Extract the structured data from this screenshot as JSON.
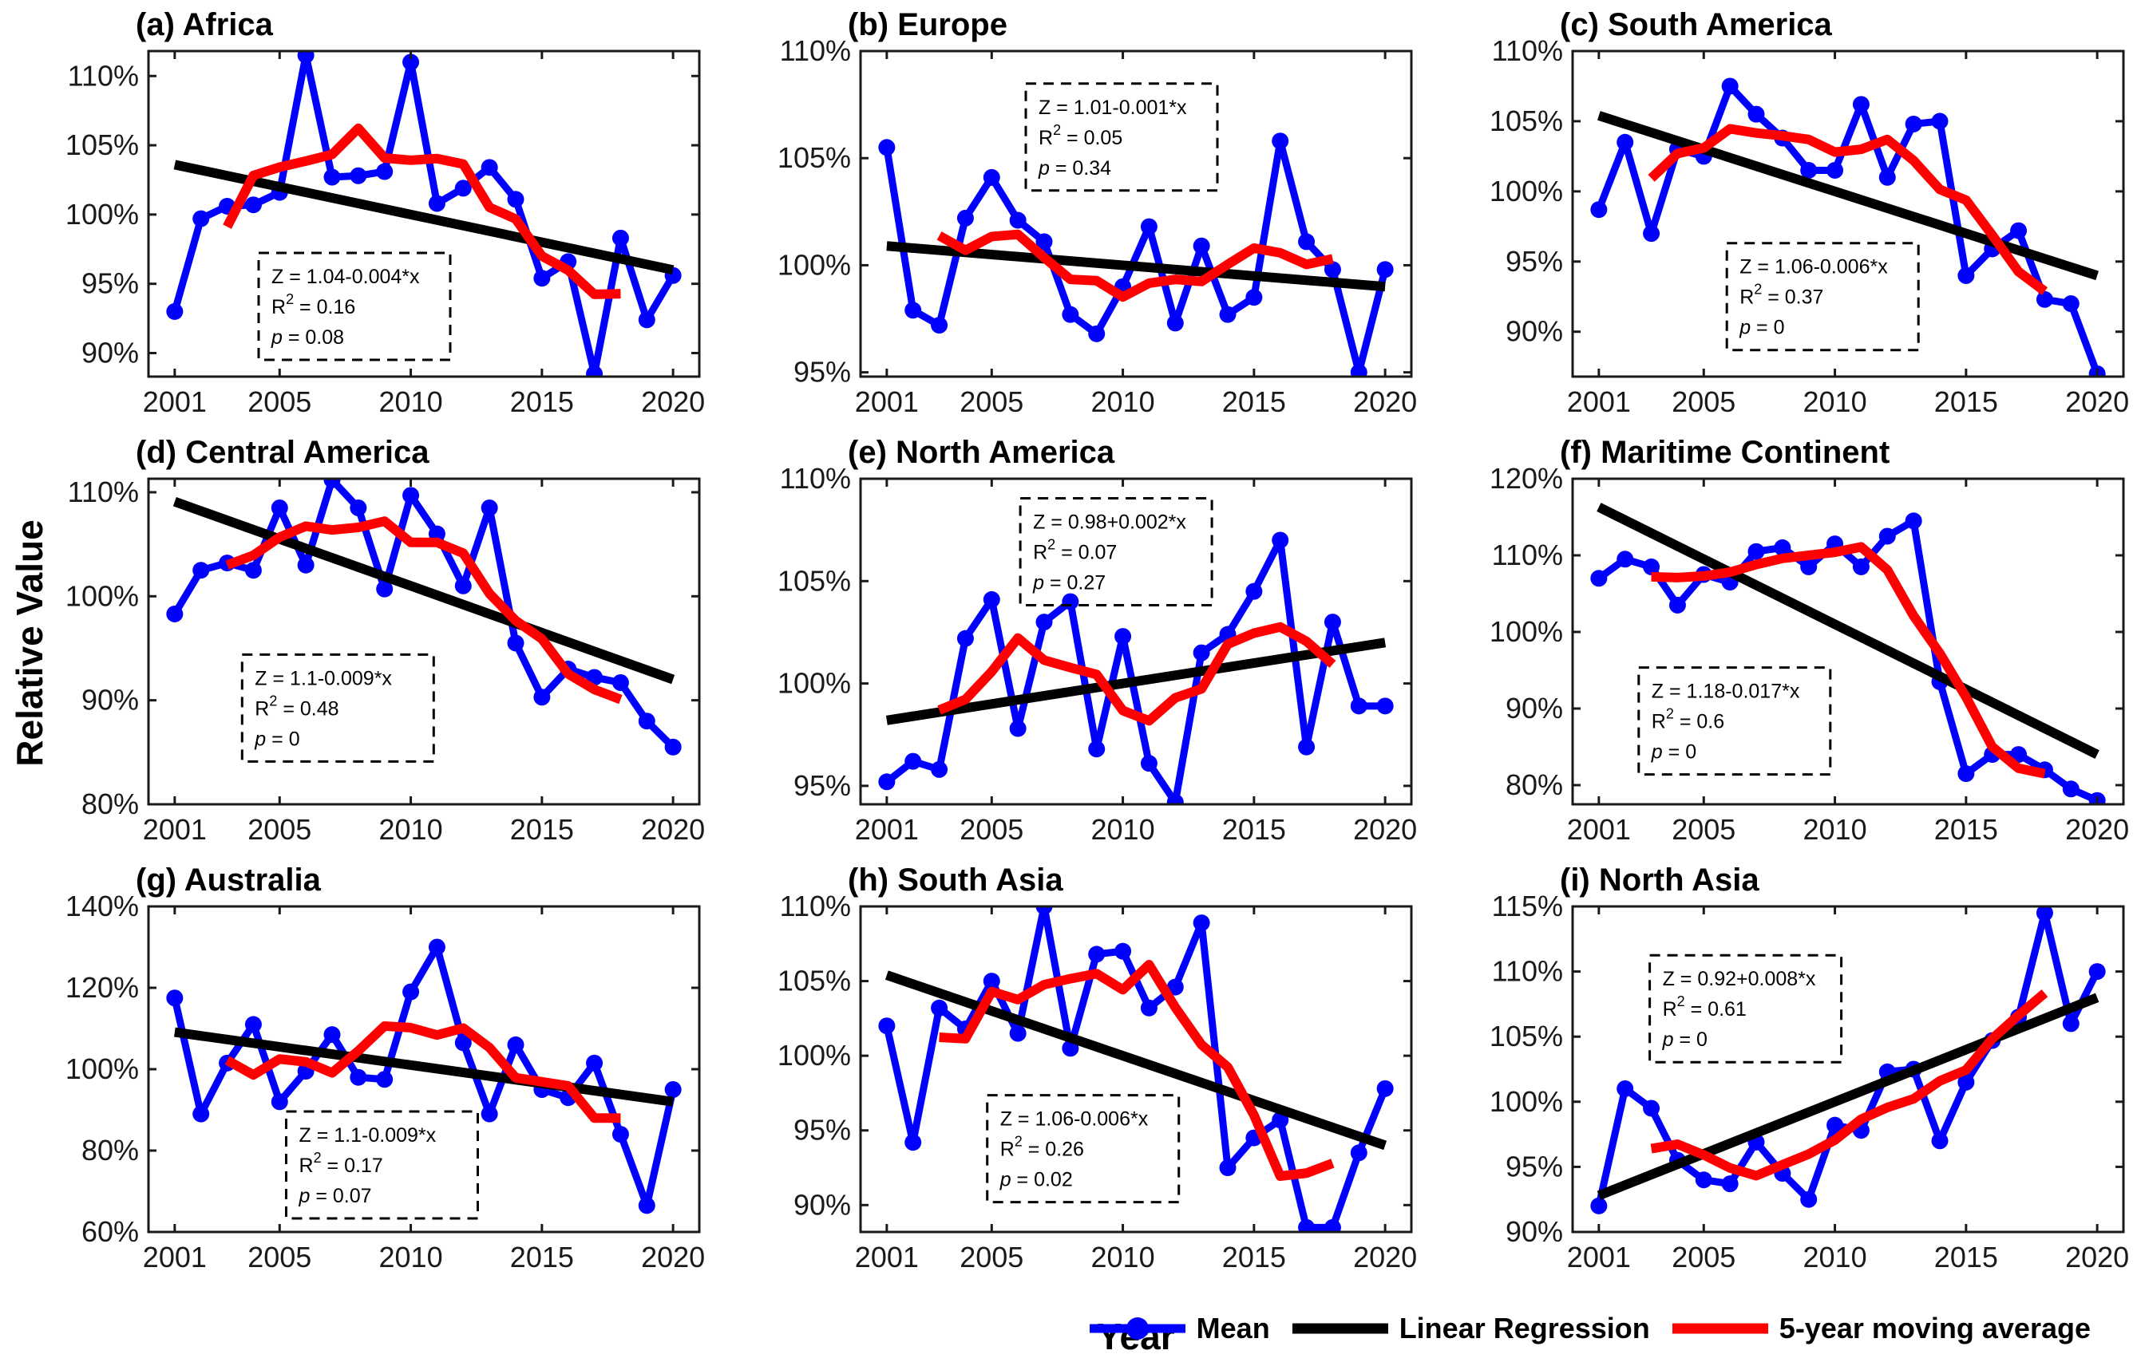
{
  "figure": {
    "ylabel": "Relative Value",
    "xlabel": "Year"
  },
  "legend": {
    "items": [
      {
        "id": "mean",
        "label": "Mean"
      },
      {
        "id": "regression",
        "label": "Linear Regression"
      },
      {
        "id": "moving_average",
        "label": "5-year moving average"
      }
    ]
  },
  "colors": {
    "mean": "#0000FF",
    "regression": "#000000",
    "moving_average": "#FF0000",
    "axis": "#1a1a1a",
    "text": "#000000"
  },
  "axis": {
    "years": [
      2001,
      2002,
      2003,
      2004,
      2005,
      2006,
      2007,
      2008,
      2009,
      2010,
      2011,
      2012,
      2013,
      2014,
      2015,
      2016,
      2017,
      2018,
      2019,
      2020
    ],
    "xticks": [
      2001,
      2005,
      2010,
      2015,
      2020
    ],
    "xlim": [
      2000,
      2021
    ],
    "tick_suffix": "%",
    "moving_average_window": 5
  },
  "chart_data": [
    {
      "type": "line",
      "id": "a",
      "title": "(a) Africa",
      "mean": [
        93.0,
        99.7,
        100.6,
        100.7,
        101.6,
        111.5,
        102.7,
        102.8,
        103.1,
        111.0,
        100.8,
        101.9,
        103.4,
        101.1,
        95.4,
        96.6,
        88.5,
        98.3,
        92.4,
        95.6
      ],
      "regression": {
        "intercept": 1.04,
        "slope": -0.004
      },
      "stats": {
        "equation": "Z = 1.04-0.004*x",
        "r2": "0.16",
        "p": "0.08"
      },
      "ylim": [
        88.3,
        111.8
      ],
      "yticks": [
        90,
        95,
        100,
        105,
        110
      ],
      "stats_box": [
        0.2,
        0.62
      ]
    },
    {
      "type": "line",
      "id": "b",
      "title": "(b) Europe",
      "mean": [
        105.5,
        97.9,
        97.2,
        102.2,
        104.1,
        102.1,
        101.1,
        97.7,
        96.8,
        99.0,
        101.8,
        97.3,
        100.9,
        97.7,
        98.5,
        105.8,
        101.1,
        99.8,
        95.0,
        99.8
      ],
      "regression": {
        "intercept": 1.01,
        "slope": -0.001
      },
      "stats": {
        "equation": "Z = 1.01-0.001*x",
        "r2": "0.05",
        "p": "0.34"
      },
      "ylim": [
        94.8,
        110
      ],
      "yticks": [
        95,
        100,
        105,
        110
      ],
      "stats_box": [
        0.3,
        0.1
      ]
    },
    {
      "type": "line",
      "id": "c",
      "title": "(c) South America",
      "mean": [
        98.7,
        103.5,
        97.0,
        103.0,
        102.5,
        107.5,
        105.5,
        103.8,
        101.5,
        101.5,
        106.2,
        101.0,
        104.8,
        105.0,
        94.0,
        95.9,
        97.2,
        92.3,
        92.0,
        87.0
      ],
      "regression": {
        "intercept": 1.06,
        "slope": -0.006
      },
      "stats": {
        "equation": "Z = 1.06-0.006*x",
        "r2": "0.37",
        "p": "0"
      },
      "ylim": [
        86.8,
        110
      ],
      "yticks": [
        90,
        95,
        100,
        105,
        110
      ],
      "stats_box": [
        0.28,
        0.59
      ]
    },
    {
      "type": "line",
      "id": "d",
      "title": "(d) Central America",
      "mean": [
        98.3,
        102.5,
        103.2,
        102.5,
        108.5,
        103.0,
        111.2,
        108.5,
        100.7,
        109.7,
        106.0,
        101.0,
        108.5,
        95.5,
        90.3,
        93.0,
        92.2,
        91.7,
        88.0,
        85.5
      ],
      "regression": {
        "intercept": 1.1,
        "slope": -0.009
      },
      "stats": {
        "equation": "Z = 1.1-0.009*x",
        "r2": "0.48",
        "p": "0"
      },
      "ylim": [
        80,
        111.3
      ],
      "yticks": [
        80,
        90,
        100,
        110
      ],
      "stats_box": [
        0.17,
        0.54
      ]
    },
    {
      "type": "line",
      "id": "e",
      "title": "(e) North America",
      "mean": [
        95.2,
        96.2,
        95.8,
        102.2,
        104.1,
        97.8,
        103.0,
        104.0,
        96.8,
        102.3,
        96.1,
        94.2,
        101.5,
        102.4,
        104.5,
        107.0,
        96.9,
        103.0,
        98.9,
        98.9
      ],
      "regression": {
        "intercept": 0.98,
        "slope": 0.002
      },
      "stats": {
        "equation": "Z = 0.98+0.002*x",
        "r2": "0.07",
        "p": "0.27"
      },
      "ylim": [
        94.1,
        110
      ],
      "yticks": [
        95,
        100,
        105,
        110
      ],
      "stats_box": [
        0.29,
        0.06
      ]
    },
    {
      "type": "line",
      "id": "f",
      "title": "(f) Maritime Continent",
      "mean": [
        107.0,
        109.5,
        108.5,
        103.5,
        107.5,
        106.5,
        110.5,
        111.0,
        108.5,
        111.5,
        108.5,
        112.5,
        114.5,
        93.5,
        81.5,
        84.0,
        84.0,
        82.0,
        79.5,
        78.0
      ],
      "regression": {
        "intercept": 1.18,
        "slope": -0.017
      },
      "stats": {
        "equation": "Z = 1.18-0.017*x",
        "r2": "0.6",
        "p": "0"
      },
      "ylim": [
        77.5,
        120
      ],
      "yticks": [
        80,
        90,
        100,
        110,
        120
      ],
      "stats_box": [
        0.12,
        0.58
      ]
    },
    {
      "type": "line",
      "id": "g",
      "title": "(g) Australia",
      "mean": [
        117.5,
        89.0,
        101.5,
        111.0,
        92.0,
        99.5,
        108.5,
        98.0,
        97.5,
        119.0,
        130.0,
        106.5,
        89.0,
        106.0,
        95.0,
        93.0,
        101.5,
        84.0,
        66.5,
        95.0
      ],
      "regression": {
        "intercept": 1.1,
        "slope": -0.009
      },
      "stats": {
        "equation": "Z = 1.1-0.009*x",
        "r2": "0.17",
        "p": "0.07"
      },
      "ylim": [
        60,
        140
      ],
      "yticks": [
        60,
        80,
        100,
        120,
        140
      ],
      "stats_box": [
        0.25,
        0.63
      ]
    },
    {
      "type": "line",
      "id": "h",
      "title": "(h) South Asia",
      "mean": [
        102.0,
        94.2,
        103.2,
        101.8,
        105.0,
        101.5,
        110.0,
        100.5,
        106.8,
        107.0,
        103.2,
        104.6,
        108.9,
        92.5,
        94.5,
        95.7,
        88.5,
        88.5,
        93.5,
        97.8
      ],
      "regression": {
        "intercept": 1.06,
        "slope": -0.006
      },
      "stats": {
        "equation": "Z = 1.06-0.006*x",
        "r2": "0.26",
        "p": "0.02"
      },
      "ylim": [
        88.2,
        110
      ],
      "yticks": [
        90,
        95,
        100,
        105,
        110
      ],
      "stats_box": [
        0.23,
        0.58
      ]
    },
    {
      "type": "line",
      "id": "i",
      "title": "(i) North Asia",
      "mean": [
        92.0,
        101.0,
        99.5,
        95.5,
        94.0,
        93.7,
        96.9,
        94.5,
        92.5,
        98.2,
        97.8,
        102.3,
        102.5,
        97.0,
        101.5,
        104.7,
        106.5,
        114.5,
        106.0,
        110.0
      ],
      "regression": {
        "intercept": 0.92,
        "slope": 0.008
      },
      "stats": {
        "equation": "Z = 0.92+0.008*x",
        "r2": "0.61",
        "p": "0"
      },
      "ylim": [
        90,
        115
      ],
      "yticks": [
        90,
        95,
        100,
        105,
        110,
        115
      ],
      "stats_box": [
        0.14,
        0.15
      ]
    }
  ]
}
